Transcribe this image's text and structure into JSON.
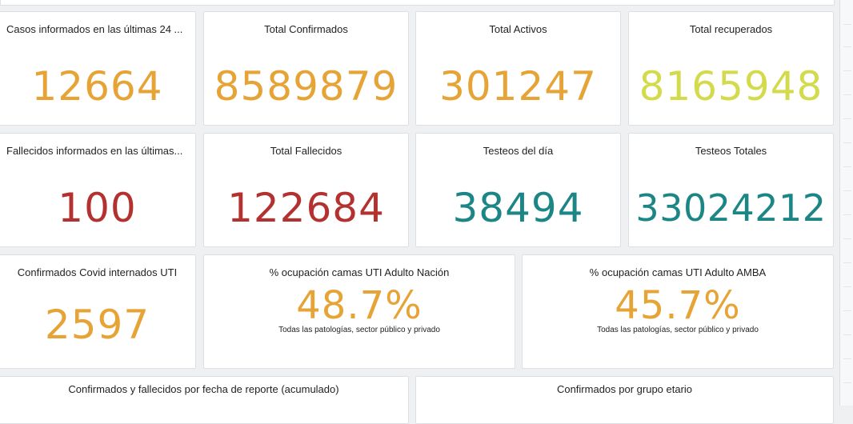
{
  "row1": [
    {
      "title": "Casos informados en las últimas 24 ...",
      "value": "12664"
    },
    {
      "title": "Total Confirmados",
      "value": "8589879"
    },
    {
      "title": "Total Activos",
      "value": "301247"
    },
    {
      "title": "Total recuperados",
      "value": "8165948"
    }
  ],
  "row2": [
    {
      "title": "Fallecidos informados en las últimas...",
      "value": "100"
    },
    {
      "title": "Total Fallecidos",
      "value": "122684"
    },
    {
      "title": "Testeos del día",
      "value": "38494"
    },
    {
      "title": "Testeos Totales",
      "value": "33024212"
    }
  ],
  "row3": {
    "uti": {
      "title": "Confirmados Covid internados UTI",
      "value": "2597"
    },
    "nacion": {
      "title": "% ocupación camas UTI Adulto Nación",
      "value": "48.7%",
      "note": "Todas las patologías, sector público y privado"
    },
    "amba": {
      "title": "% ocupación camas UTI Adulto AMBA",
      "value": "45.7%",
      "note": "Todas las patologías, sector público y privado"
    }
  },
  "row4": [
    {
      "title": "Confirmados y fallecidos por fecha de reporte (acumulado)"
    },
    {
      "title": "Confirmados por grupo etario"
    }
  ],
  "colors": {
    "orange": "#e6a336",
    "lime": "#d3db4c",
    "red": "#b3312f",
    "teal": "#1c8585"
  }
}
